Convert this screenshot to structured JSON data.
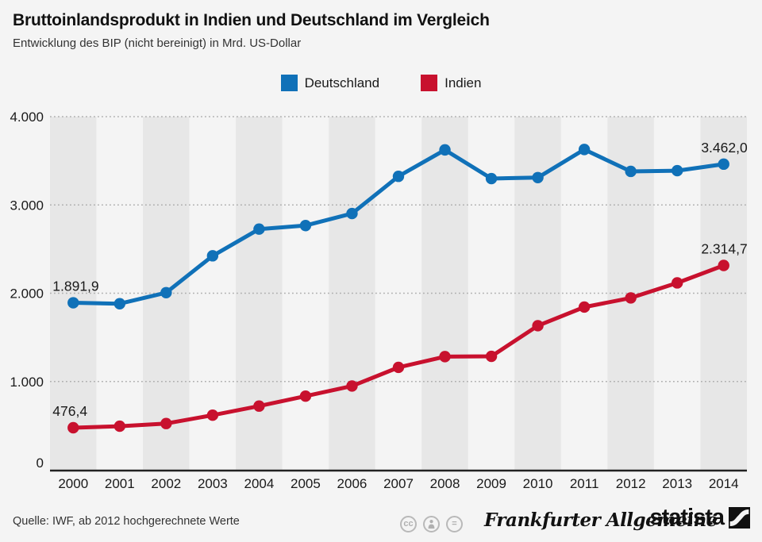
{
  "header": {
    "title": "Bruttoinlandsprodukt in Indien und Deutschland im Vergleich",
    "subtitle": "Entwicklung des BIP (nicht bereinigt) in Mrd. US-Dollar"
  },
  "legend": {
    "items": [
      {
        "label": "Deutschland",
        "color": "#1071b8"
      },
      {
        "label": "Indien",
        "color": "#c8112e"
      }
    ]
  },
  "chart_data": {
    "type": "line",
    "title": "Bruttoinlandsprodukt in Indien und Deutschland im Vergleich",
    "subtitle": "Entwicklung des BIP (nicht bereinigt) in Mrd. US-Dollar",
    "x": [
      2000,
      2001,
      2002,
      2003,
      2004,
      2005,
      2006,
      2007,
      2008,
      2009,
      2010,
      2011,
      2012,
      2013,
      2014
    ],
    "series": [
      {
        "name": "Deutschland",
        "color": "#1071b8",
        "values": [
          1891.9,
          1880.9,
          2006.6,
          2423.8,
          2726.3,
          2766.3,
          2902.7,
          3323.8,
          3623.7,
          3298.6,
          3310.0,
          3628.0,
          3380.0,
          3388.0,
          3462.0
        ]
      },
      {
        "name": "Indien",
        "color": "#c8112e",
        "values": [
          476.4,
          493.9,
          523.8,
          618.4,
          721.6,
          834.2,
          949.1,
          1160.0,
          1282.0,
          1285.0,
          1632.0,
          1843.0,
          1947.0,
          2117.0,
          2314.7
        ]
      }
    ],
    "ylim": [
      0,
      4000
    ],
    "yticks": [
      {
        "value": 0,
        "label": "0"
      },
      {
        "value": 1000,
        "label": "1.000"
      },
      {
        "value": 2000,
        "label": "2.000"
      },
      {
        "value": 3000,
        "label": "3.000"
      },
      {
        "value": 4000,
        "label": "4.000"
      }
    ],
    "grid": "horizontal-dotted",
    "background_stripes": "alternating-year-columns",
    "legend_position": "top-center",
    "annotations": [
      {
        "series": 0,
        "x_index": 0,
        "label": "1.891,9"
      },
      {
        "series": 0,
        "x_index": 14,
        "label": "3.462,0"
      },
      {
        "series": 1,
        "x_index": 0,
        "label": "476,4"
      },
      {
        "series": 1,
        "x_index": 14,
        "label": "2.314,7"
      }
    ]
  },
  "footer": {
    "source": "Quelle: IWF, ab 2012 hochgerechnete Werte",
    "license_icons": [
      {
        "name": "cc-icon",
        "glyph": "cc"
      },
      {
        "name": "attribution-icon",
        "glyph": "person"
      },
      {
        "name": "no-derivatives-icon",
        "glyph": "="
      }
    ],
    "brands": [
      {
        "name": "Frankfurter Allgemeine"
      },
      {
        "name": "statista"
      }
    ]
  },
  "colors": {
    "background": "#f4f4f4",
    "stripe_dark": "#e7e7e7",
    "stripe_light": "#f4f4f4",
    "gridline": "#aeaeae",
    "axis": "#222222",
    "text": "#1a1a1a"
  }
}
